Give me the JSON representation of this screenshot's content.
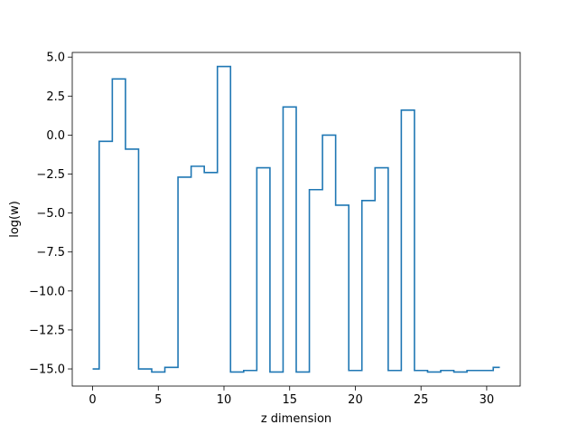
{
  "chart_data": {
    "type": "line",
    "drawstyle": "steps-mid",
    "title": "",
    "xlabel": "z dimension",
    "ylabel": "log(w)",
    "xlim": [
      -1.55,
      32.55
    ],
    "ylim": [
      -16.1,
      5.3
    ],
    "xticks": [
      0,
      5,
      10,
      15,
      20,
      25,
      30
    ],
    "xtick_labels": [
      "0",
      "5",
      "10",
      "15",
      "20",
      "25",
      "30"
    ],
    "yticks": [
      5.0,
      2.5,
      0.0,
      -2.5,
      -5.0,
      -7.5,
      -10.0,
      -12.5,
      -15.0
    ],
    "ytick_labels": [
      "5.0",
      "2.5",
      "0.0",
      "−2.5",
      "−5.0",
      "−7.5",
      "−10.0",
      "−12.5",
      "−15.0"
    ],
    "grid": false,
    "legend": "none",
    "series": [
      {
        "color": "#1f77b4",
        "x": [
          0,
          1,
          2,
          3,
          4,
          5,
          6,
          7,
          8,
          9,
          10,
          11,
          12,
          13,
          14,
          15,
          16,
          17,
          18,
          19,
          20,
          21,
          22,
          23,
          24,
          25,
          26,
          27,
          28,
          29,
          30,
          31
        ],
        "y": [
          -15.0,
          -0.4,
          3.6,
          -0.9,
          -15.0,
          -15.2,
          -14.9,
          -2.7,
          -2.0,
          -2.4,
          4.4,
          -15.2,
          -15.1,
          -2.1,
          -15.2,
          1.8,
          -15.2,
          -3.5,
          0.0,
          -4.5,
          -15.1,
          -4.2,
          -2.1,
          -15.1,
          1.6,
          -15.1,
          -15.2,
          -15.1,
          -15.2,
          -15.1,
          -15.1,
          -14.9
        ]
      }
    ]
  }
}
